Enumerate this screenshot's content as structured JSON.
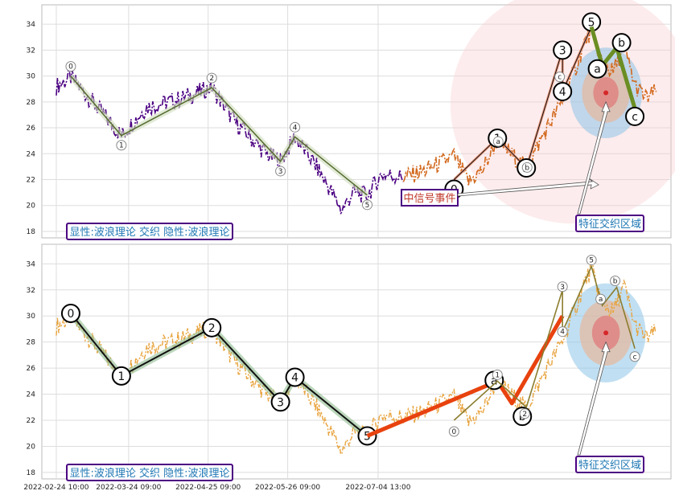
{
  "chart_data": [
    {
      "type": "line",
      "panel": "top",
      "ylim": [
        17.5,
        35.5
      ],
      "yticks": [
        "18",
        "20",
        "22",
        "24",
        "26",
        "28",
        "30",
        "32",
        "34"
      ],
      "grid": true,
      "annotation_bottom_left": "显性:波浪理论 交织 隐性:波浪理论",
      "annotation_signal": "中信号事件",
      "annotation_region": "特征交织区域",
      "price_series_color": "#4b0082",
      "recent_series_color": "#d2691e",
      "price_waypoints": [
        [
          0,
          29.2
        ],
        [
          4,
          29.9
        ],
        [
          10,
          28.0
        ],
        [
          18,
          25.4
        ],
        [
          25,
          27.6
        ],
        [
          34,
          28.2
        ],
        [
          43,
          29.1
        ],
        [
          49,
          26.6
        ],
        [
          58,
          24.0
        ],
        [
          62,
          23.4
        ],
        [
          66,
          25.3
        ],
        [
          72,
          23.0
        ],
        [
          76,
          21.1
        ],
        [
          79,
          19.6
        ],
        [
          82,
          21.0
        ],
        [
          86,
          20.8
        ],
        [
          90,
          22.4
        ],
        [
          96,
          22.2
        ],
        [
          102,
          22.7
        ],
        [
          110,
          23.8
        ],
        [
          114,
          21.8
        ],
        [
          118,
          22.8
        ],
        [
          122,
          25.1
        ],
        [
          126,
          23.9
        ],
        [
          130,
          22.9
        ],
        [
          135,
          25.6
        ],
        [
          140,
          28.1
        ],
        [
          144,
          30.9
        ],
        [
          146,
          32.5
        ],
        [
          148,
          33.6
        ],
        [
          151,
          31.0
        ],
        [
          154,
          30.3
        ],
        [
          157,
          32.3
        ],
        [
          160,
          29.3
        ],
        [
          163,
          28.3
        ],
        [
          166,
          28.8
        ]
      ],
      "zigzag_main": {
        "color": "#556b2f",
        "labels": [
          "0",
          "1",
          "2",
          "3",
          "4",
          "5"
        ],
        "points": [
          [
            4,
            30.0
          ],
          [
            18,
            25.4
          ],
          [
            43,
            29.1
          ],
          [
            62,
            23.4
          ],
          [
            66,
            25.3
          ],
          [
            86,
            20.8
          ]
        ]
      },
      "zigzag_recent": {
        "color": "#e9967a",
        "labels": [
          "0",
          "1",
          "2",
          "3",
          "4",
          "5"
        ],
        "points": [
          [
            110,
            22.0
          ],
          [
            122,
            25.2
          ],
          [
            130,
            22.9
          ],
          [
            140,
            32.0
          ],
          [
            140,
            28.8
          ],
          [
            148,
            33.8
          ]
        ]
      },
      "zigzag_correction": {
        "color": "#6b8e23",
        "labels": [
          "a",
          "b",
          "c"
        ],
        "points": [
          [
            148,
            33.8
          ],
          [
            151,
            30.8
          ],
          [
            155,
            32.2
          ],
          [
            160,
            27.5
          ]
        ]
      },
      "pink_region": {
        "center": [
          143,
          27.8
        ],
        "radius": [
          34,
          9.2
        ]
      },
      "blue_region": {
        "center": [
          152,
          28.7
        ],
        "radius": [
          10,
          3.5
        ]
      },
      "red_marker": [
        152,
        28.7
      ]
    },
    {
      "type": "line",
      "panel": "bottom",
      "ylim": [
        17.5,
        35.5
      ],
      "yticks": [
        "18",
        "20",
        "22",
        "24",
        "26",
        "28",
        "30",
        "32",
        "34"
      ],
      "grid": true,
      "annotation_bottom_left": "显性:波浪理论 交织 隐性:波浪理论",
      "annotation_region": "特征交织区域",
      "price_series_color": "#e8a33d",
      "zigzag_main": {
        "color": "#8fbc8f",
        "labels": [
          "0",
          "1",
          "2",
          "3",
          "4",
          "5"
        ],
        "points": [
          [
            4,
            30.2
          ],
          [
            18,
            25.4
          ],
          [
            43,
            29.1
          ],
          [
            62,
            23.4
          ],
          [
            66,
            25.3
          ],
          [
            86,
            20.8
          ]
        ]
      },
      "zigzag_red": {
        "color": "#e8420e",
        "labels": [
          "a",
          "b"
        ],
        "points": [
          [
            86,
            20.8
          ],
          [
            122,
            25.0
          ],
          [
            126,
            23.3
          ],
          [
            140,
            30.0
          ]
        ]
      },
      "zigzag_small": {
        "labels": [
          "0",
          "1",
          "2",
          "3",
          "4",
          "5",
          "a",
          "b",
          "c"
        ],
        "points": [
          [
            110,
            22.0
          ],
          [
            122,
            25.0
          ],
          [
            130,
            23.0
          ],
          [
            140,
            32.0
          ],
          [
            140,
            28.8
          ],
          [
            148,
            33.8
          ],
          [
            151,
            30.8
          ],
          [
            155,
            32.2
          ],
          [
            160,
            27.5
          ]
        ]
      },
      "blue_region": {
        "center": [
          152,
          28.7
        ],
        "radius": [
          11,
          3.8
        ]
      },
      "red_marker": [
        152,
        28.7
      ]
    }
  ],
  "x_axis": {
    "tick_labels": [
      "2022-02-24 10:00",
      "2022-03-24 09:00",
      "2022-04-25 09:00",
      "2022-05-26 09:00",
      "2022-07-04 13:00"
    ],
    "tick_index": [
      0,
      20,
      42,
      64,
      89
    ],
    "range": [
      -4,
      170
    ]
  }
}
